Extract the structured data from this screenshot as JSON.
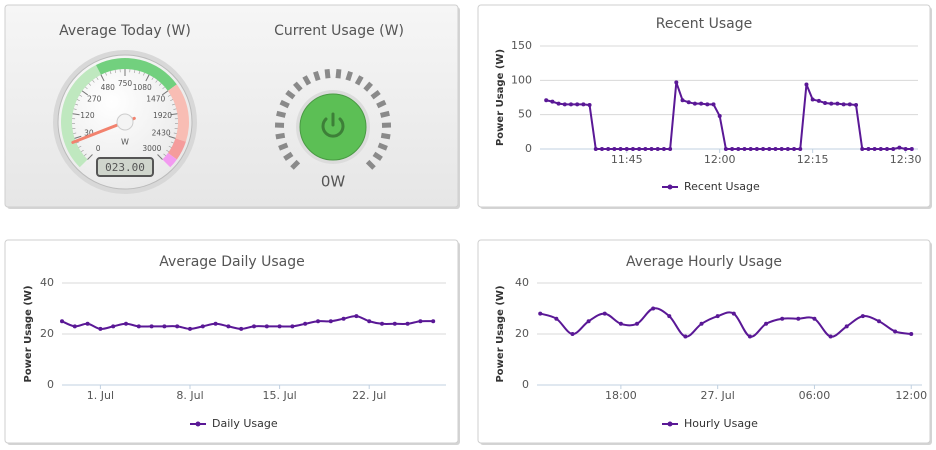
{
  "chart_data": [
    {
      "type": "gauge",
      "title": "Average Today (W)",
      "value": 23,
      "value_label": "023.00",
      "unit_label": "W",
      "scale": "sqrt",
      "range": [
        0,
        3000
      ],
      "ticks": [
        0,
        30,
        120,
        270,
        480,
        750,
        1080,
        1470,
        1920,
        2430,
        3000
      ],
      "bands": [
        {
          "from": 0,
          "to": 480,
          "color": "#bfe8bf"
        },
        {
          "from": 480,
          "to": 1470,
          "color": "#72d07e"
        },
        {
          "from": 1470,
          "to": 2430,
          "color": "#f8bdb4"
        },
        {
          "from": 2430,
          "to": 2800,
          "color": "#f59c9c"
        },
        {
          "from": 2800,
          "to": 3000,
          "color": "#f29af0"
        }
      ],
      "pointer_color": "#f2826e"
    },
    {
      "type": "indicator",
      "title": "Current Usage (W)",
      "value": 0,
      "value_label": "0W",
      "color": "#5cbf55"
    },
    {
      "type": "line",
      "title": "Recent Usage",
      "y_label": "Power Usage (W)",
      "color": "#5a1896",
      "legend": "bottom",
      "grid": true,
      "smooth": false,
      "x": [
        "11:32",
        "11:33",
        "11:34",
        "11:35",
        "11:36",
        "11:37",
        "11:38",
        "11:39",
        "11:40",
        "11:41",
        "11:42",
        "11:43",
        "11:44",
        "11:45",
        "11:46",
        "11:47",
        "11:48",
        "11:49",
        "11:50",
        "11:51",
        "11:52",
        "11:53",
        "11:54",
        "11:55",
        "11:56",
        "11:57",
        "11:58",
        "11:59",
        "12:00",
        "12:01",
        "12:02",
        "12:03",
        "12:04",
        "12:05",
        "12:06",
        "12:07",
        "12:08",
        "12:09",
        "12:10",
        "12:11",
        "12:12",
        "12:13",
        "12:14",
        "12:15",
        "12:16",
        "12:17",
        "12:18",
        "12:19",
        "12:20",
        "12:21",
        "12:22",
        "12:23",
        "12:24",
        "12:25",
        "12:26",
        "12:27",
        "12:28",
        "12:29",
        "12:30",
        "12:31"
      ],
      "series": [
        {
          "name": "Recent Usage",
          "color": "#5a1896",
          "values": [
            71,
            69,
            66,
            65,
            65,
            65,
            65,
            64,
            0,
            0,
            0,
            0,
            0,
            0,
            0,
            0,
            0,
            0,
            0,
            0,
            0,
            97,
            71,
            68,
            66,
            66,
            65,
            65,
            48,
            0,
            0,
            0,
            0,
            0,
            0,
            0,
            0,
            0,
            0,
            0,
            0,
            0,
            94,
            72,
            70,
            67,
            66,
            66,
            65,
            65,
            64,
            0,
            0,
            0,
            0,
            0,
            0,
            2,
            0,
            0
          ]
        }
      ],
      "xlim": [
        "11:31",
        "12:32"
      ],
      "xticks": [
        "11:45",
        "12:00",
        "12:15",
        "12:30"
      ],
      "ylim": [
        0,
        150
      ],
      "yticks": [
        0,
        50,
        100,
        150
      ]
    },
    {
      "type": "line",
      "title": "Average Daily Usage",
      "y_label": "Power Usage (W)",
      "legend": "bottom",
      "grid": true,
      "smooth": true,
      "x": [
        "28. Jun",
        "29. Jun",
        "30. Jun",
        "1. Jul",
        "2. Jul",
        "3. Jul",
        "4. Jul",
        "5. Jul",
        "6. Jul",
        "7. Jul",
        "8. Jul",
        "9. Jul",
        "10. Jul",
        "11. Jul",
        "12. Jul",
        "13. Jul",
        "14. Jul",
        "15. Jul",
        "16. Jul",
        "17. Jul",
        "18. Jul",
        "19. Jul",
        "20. Jul",
        "21. Jul",
        "22. Jul",
        "23. Jul",
        "24. Jul",
        "25. Jul",
        "26. Jul",
        "27. Jul"
      ],
      "series": [
        {
          "name": "Daily Usage",
          "color": "#5a1896",
          "values": [
            25,
            23,
            24,
            22,
            23,
            24,
            23,
            23,
            23,
            23,
            22,
            23,
            24,
            23,
            22,
            23,
            23,
            23,
            23,
            24,
            25,
            25,
            26,
            27,
            25,
            24,
            24,
            24,
            25,
            25
          ]
        }
      ],
      "xlim": [
        "28. Jun",
        "28. Jul"
      ],
      "xticks": [
        "1. Jul",
        "8. Jul",
        "15. Jul",
        "22. Jul"
      ],
      "ylim": [
        0,
        40
      ],
      "yticks": [
        0,
        20,
        40
      ]
    },
    {
      "type": "line",
      "title": "Average Hourly Usage",
      "y_label": "Power Usage (W)",
      "legend": "bottom",
      "grid": true,
      "smooth": true,
      "x": [
        "13:00",
        "14:00",
        "15:00",
        "16:00",
        "17:00",
        "18:00",
        "19:00",
        "20:00",
        "21:00",
        "22:00",
        "23:00",
        "00:00",
        "01:00",
        "02:00",
        "03:00",
        "04:00",
        "05:00",
        "06:00",
        "07:00",
        "08:00",
        "09:00",
        "10:00",
        "11:00",
        "12:00"
      ],
      "series": [
        {
          "name": "Hourly Usage",
          "color": "#5a1896",
          "values": [
            28,
            26,
            20,
            25,
            28,
            24,
            24,
            30,
            27,
            19,
            24,
            27,
            28,
            19,
            24,
            26,
            26,
            26,
            19,
            23,
            27,
            25,
            21,
            20
          ]
        }
      ],
      "xlim": [
        "12:48",
        "12:40"
      ],
      "xticks": [
        "18:00",
        {
          "value": "00:00",
          "label": "27. Jul"
        },
        "06:00",
        "12:00"
      ],
      "ylim": [
        0,
        40
      ],
      "yticks": [
        0,
        20,
        40
      ]
    }
  ]
}
